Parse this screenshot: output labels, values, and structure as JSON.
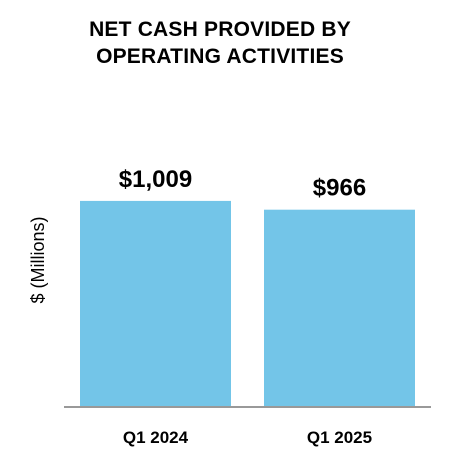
{
  "chart_data": {
    "type": "bar",
    "title_lines": [
      "NET CASH PROVIDED BY",
      "OPERATING ACTIVITIES"
    ],
    "categories": [
      "Q1 2024",
      "Q1 2025"
    ],
    "values": [
      1009,
      966
    ],
    "data_labels": [
      "$1,009",
      "$966"
    ],
    "ylabel": "$ (Millions)",
    "xlabel": "",
    "ylim": [
      0,
      1175
    ],
    "grid": false,
    "legend": "none",
    "colors": {
      "bar": "#73C5E8",
      "axis": "#999999",
      "text": "#000000"
    }
  }
}
